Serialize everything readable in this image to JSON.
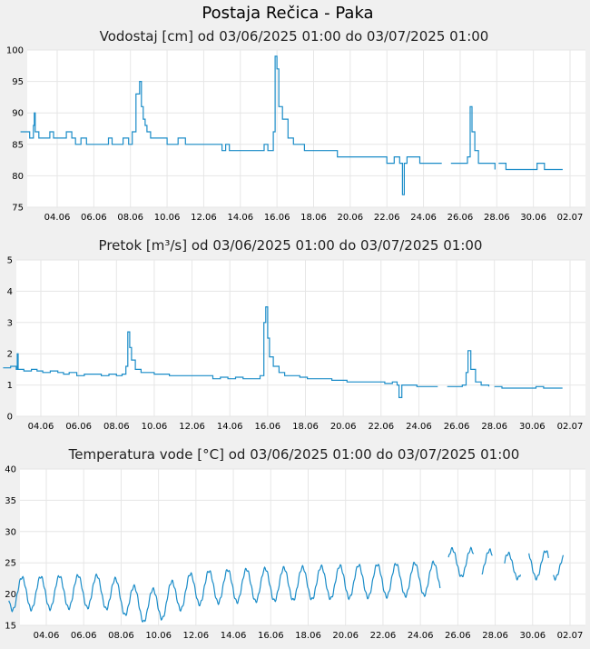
{
  "page_title": "Postaja Rečica - Paka",
  "chart_data": [
    {
      "type": "line",
      "title": "Vodostaj [cm] od 03/06/2025 01:00 do 03/07/2025 01:00",
      "xlabel": "",
      "ylabel": "",
      "ylim": [
        75,
        100
      ],
      "y_ticks": [
        75,
        80,
        85,
        90,
        95,
        100
      ],
      "x_tick_labels": [
        "04.06",
        "06.06",
        "08.06",
        "10.06",
        "12.06",
        "14.06",
        "16.06",
        "18.06",
        "20.06",
        "22.06",
        "24.06",
        "26.06",
        "28.06",
        "30.06",
        "02.07"
      ],
      "grid": true,
      "color": "#1a8cc8",
      "series": [
        {
          "x": [
            2.0,
            2.3,
            2.5,
            2.7,
            2.75,
            2.8,
            3.0,
            3.3,
            3.6,
            3.8,
            4.1,
            4.5,
            4.8,
            5.0,
            5.3,
            5.6,
            6.0,
            6.4,
            6.8,
            7.0,
            7.3,
            7.6,
            7.9,
            8.1,
            8.3,
            8.5,
            8.6,
            8.7,
            8.8,
            8.9,
            9.1,
            9.4,
            9.7,
            10.0,
            10.3,
            10.6,
            11.0,
            11.4,
            11.8,
            12.2,
            12.6,
            13.0,
            13.2,
            13.4,
            13.6,
            13.8,
            14.2,
            14.6,
            15.0,
            15.3,
            15.5,
            15.7,
            15.8,
            15.9,
            16.0,
            16.1,
            16.3,
            16.6,
            16.9,
            17.2,
            17.5,
            17.9,
            18.3,
            18.7,
            19.0,
            19.3,
            19.7,
            20.0,
            20.4,
            20.8,
            21.2,
            21.6,
            22.0,
            22.4,
            22.7,
            22.85,
            22.95,
            23.1,
            23.4,
            23.8,
            24.2,
            24.6,
            25.0
          ],
          "values": [
            87,
            87,
            86,
            88,
            90,
            87,
            86,
            86,
            87,
            86,
            86,
            87,
            86,
            85,
            86,
            85,
            85,
            85,
            86,
            85,
            85,
            86,
            85,
            87,
            93,
            95,
            91,
            89,
            88,
            87,
            86,
            86,
            86,
            85,
            85,
            86,
            85,
            85,
            85,
            85,
            85,
            84,
            85,
            84,
            84,
            84,
            84,
            84,
            84,
            85,
            84,
            84,
            87,
            99,
            97,
            91,
            89,
            86,
            85,
            85,
            84,
            84,
            84,
            84,
            84,
            83,
            83,
            83,
            83,
            83,
            83,
            83,
            82,
            83,
            82,
            77,
            82,
            83,
            83,
            82,
            82,
            82,
            82
          ]
        },
        {
          "x": [
            25.5,
            25.9,
            26.2,
            26.4,
            26.55,
            26.65,
            26.8,
            27.0,
            27.3,
            27.6,
            27.9
          ],
          "values": [
            82,
            82,
            82,
            83,
            91,
            87,
            84,
            82,
            82,
            82,
            81
          ]
        },
        {
          "x": [
            28.1,
            28.5,
            29.0,
            29.5,
            29.8,
            30.2,
            30.6,
            31.0,
            31.6
          ],
          "values": [
            82,
            81,
            81,
            81,
            81,
            82,
            81,
            81,
            81
          ]
        }
      ]
    },
    {
      "type": "line",
      "title": "Pretok [m³/s] od 03/06/2025 01:00 do 03/07/2025 01:00",
      "xlabel": "",
      "ylabel": "",
      "ylim": [
        0,
        5
      ],
      "y_ticks": [
        0,
        1,
        2,
        3,
        4,
        5
      ],
      "x_tick_labels": [
        "04.06",
        "06.06",
        "08.06",
        "10.06",
        "12.06",
        "14.06",
        "16.06",
        "18.06",
        "20.06",
        "22.06",
        "24.06",
        "26.06",
        "28.06",
        "30.06",
        "02.07"
      ],
      "grid": true,
      "color": "#1a8cc8",
      "series": [
        {
          "x": [
            2.0,
            2.4,
            2.7,
            2.75,
            2.8,
            3.1,
            3.5,
            3.8,
            4.1,
            4.5,
            4.9,
            5.2,
            5.5,
            5.9,
            6.3,
            6.8,
            7.2,
            7.6,
            8.0,
            8.3,
            8.5,
            8.6,
            8.7,
            8.8,
            9.0,
            9.3,
            9.7,
            10.0,
            10.4,
            10.8,
            11.2,
            11.6,
            12.0,
            12.4,
            12.8,
            13.1,
            13.5,
            13.9,
            14.3,
            14.7,
            15.1,
            15.4,
            15.6,
            15.8,
            15.9,
            16.0,
            16.1,
            16.3,
            16.6,
            16.9,
            17.3,
            17.7,
            18.1,
            18.5,
            19.0,
            19.4,
            19.8,
            20.2,
            20.6,
            21.0,
            21.4,
            21.8,
            22.2,
            22.6,
            22.85,
            22.95,
            23.1,
            23.5,
            23.9,
            24.3,
            24.7,
            25.0
          ],
          "values": [
            1.55,
            1.6,
            1.5,
            2.0,
            1.5,
            1.45,
            1.5,
            1.45,
            1.4,
            1.45,
            1.4,
            1.35,
            1.4,
            1.3,
            1.35,
            1.35,
            1.3,
            1.35,
            1.3,
            1.35,
            1.6,
            2.7,
            2.2,
            1.8,
            1.5,
            1.4,
            1.4,
            1.35,
            1.35,
            1.3,
            1.3,
            1.3,
            1.3,
            1.3,
            1.3,
            1.2,
            1.25,
            1.2,
            1.25,
            1.2,
            1.2,
            1.2,
            1.3,
            3.0,
            3.5,
            2.5,
            1.9,
            1.6,
            1.4,
            1.3,
            1.3,
            1.25,
            1.2,
            1.2,
            1.2,
            1.15,
            1.15,
            1.1,
            1.1,
            1.1,
            1.1,
            1.1,
            1.05,
            1.1,
            1.0,
            0.6,
            1.0,
            1.0,
            0.95,
            0.95,
            0.95,
            0.95
          ]
        },
        {
          "x": [
            25.5,
            25.9,
            26.3,
            26.5,
            26.6,
            26.75,
            27.0,
            27.3,
            27.7
          ],
          "values": [
            0.95,
            0.95,
            1.0,
            1.4,
            2.1,
            1.5,
            1.1,
            1.0,
            0.95
          ]
        },
        {
          "x": [
            28.0,
            28.4,
            28.8,
            29.3,
            29.8,
            30.2,
            30.6,
            31.0,
            31.6
          ],
          "values": [
            0.95,
            0.9,
            0.9,
            0.9,
            0.9,
            0.95,
            0.9,
            0.9,
            0.9
          ]
        }
      ]
    },
    {
      "type": "line",
      "title": "Temperatura vode [°C] od 03/06/2025 01:00 do 03/07/2025 01:00",
      "xlabel": "",
      "ylabel": "",
      "ylim": [
        15,
        40
      ],
      "y_ticks": [
        15,
        20,
        25,
        30,
        35,
        40
      ],
      "x_tick_labels": [
        "04.06",
        "06.06",
        "08.06",
        "10.06",
        "12.06",
        "14.06",
        "16.06",
        "18.06",
        "20.06",
        "22.06",
        "24.06",
        "26.06",
        "28.06",
        "30.06",
        "02.07"
      ],
      "grid": true,
      "color": "#1a8cc8",
      "series": [
        {
          "x_start": 2.0,
          "x_end": 25.05,
          "mean_start": 20.0,
          "mean_end": 22.5,
          "amplitude": 2.6,
          "min_dip_day": 9.5,
          "min_dip_value": 17.0
        },
        {
          "x_start": 25.5,
          "x_end": 26.85,
          "mean_start": 25.0,
          "mean_end": 25.0,
          "amplitude": 2.2
        },
        {
          "x_start": 27.3,
          "x_end": 27.85,
          "mean_start": 25.0,
          "mean_end": 25.0,
          "amplitude": 2.0
        },
        {
          "x_start": 28.5,
          "x_end": 29.35,
          "mean_start": 24.5,
          "mean_end": 24.5,
          "amplitude": 2.0
        },
        {
          "x_start": 29.8,
          "x_end": 30.85,
          "mean_start": 24.7,
          "mean_end": 24.7,
          "amplitude": 2.2
        },
        {
          "x_start": 31.1,
          "x_end": 31.65,
          "mean_start": 24.3,
          "mean_end": 24.3,
          "amplitude": 1.8
        }
      ]
    }
  ]
}
